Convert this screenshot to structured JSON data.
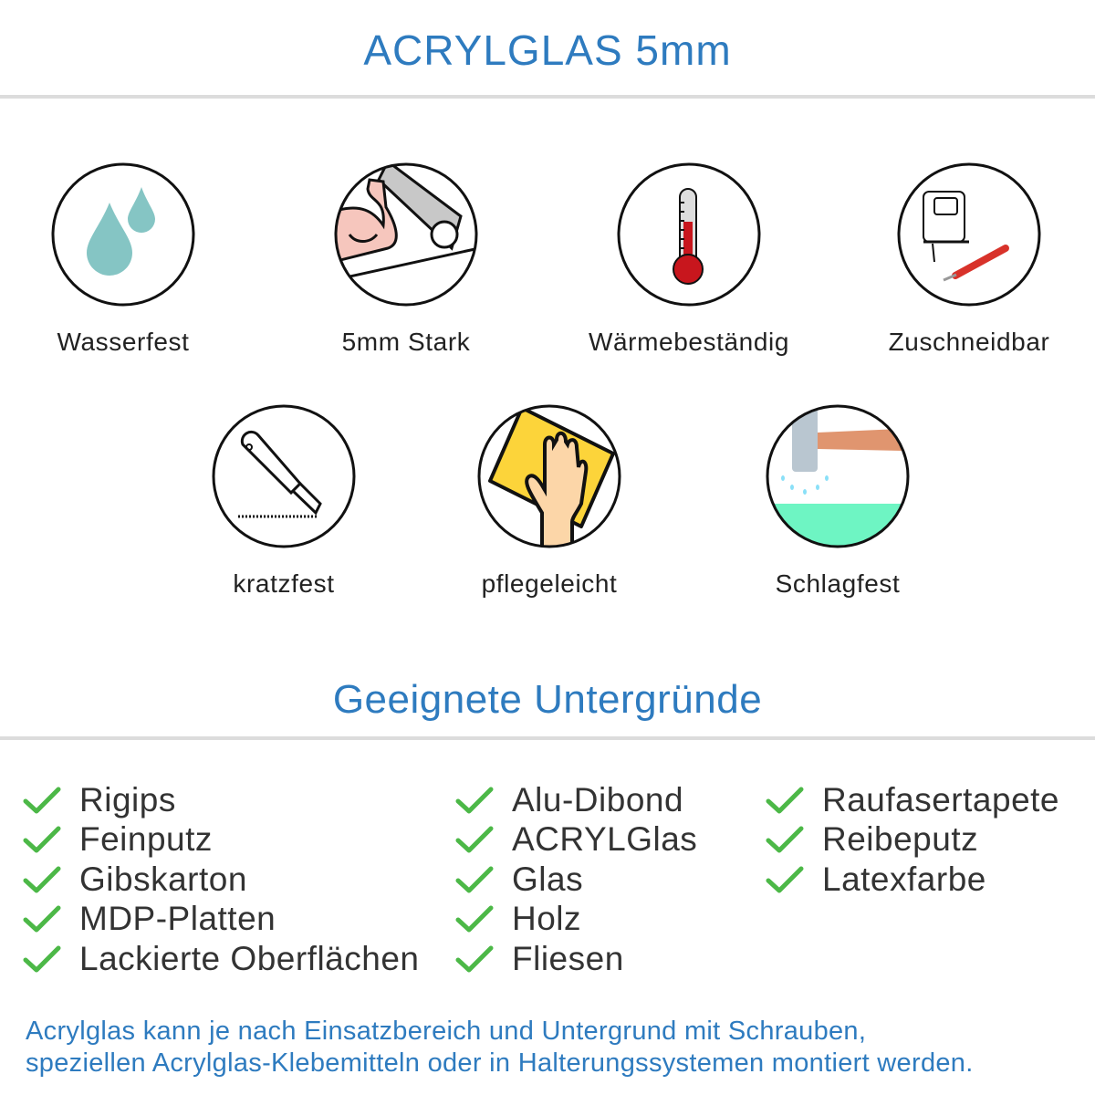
{
  "header": {
    "title": "ACRYLGLAS 5mm"
  },
  "features": [
    {
      "label": "Wasserfest",
      "icon": "water-drops-icon"
    },
    {
      "label": "5mm Stark",
      "icon": "strong-arm-icon"
    },
    {
      "label": "Wärmebeständig",
      "icon": "thermometer-icon"
    },
    {
      "label": "Zuschneidbar",
      "icon": "jigsaw-cutter-icon"
    },
    {
      "label": "kratzfest",
      "icon": "cutter-knife-icon"
    },
    {
      "label": "pflegeleicht",
      "icon": "hand-cloth-icon"
    },
    {
      "label": "Schlagfest",
      "icon": "hammer-icon"
    }
  ],
  "surfaces": {
    "title": "Geeignete Untergründe",
    "columns": [
      [
        "Rigips",
        "Feinputz",
        "Gibskarton",
        "MDP-Platten",
        "Lackierte Oberflächen"
      ],
      [
        "Alu-Dibond",
        "ACRYLGlas",
        "Glas",
        "Holz",
        "Fliesen"
      ],
      [
        "Raufasertapete",
        "Reibeputz",
        "Latexfarbe"
      ]
    ]
  },
  "footer": {
    "line1": "Acrylglas kann je nach Einsatzbereich und Untergrund mit Schrauben,",
    "line2": "speziellen Acrylglas-Klebemitteln oder in Halterungssystemen montiert werden."
  },
  "colors": {
    "accent": "#2e7bbf",
    "check": "#4cb847",
    "rule": "#dcdcdc"
  }
}
